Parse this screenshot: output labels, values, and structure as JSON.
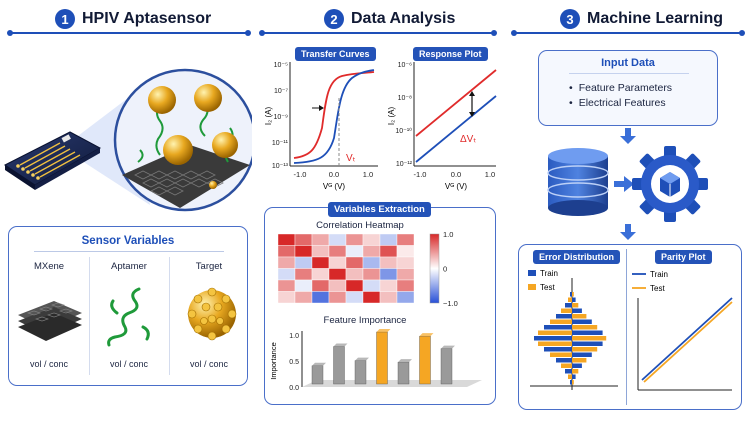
{
  "sections": [
    {
      "num": "1",
      "title": "HPIV Aptasensor"
    },
    {
      "num": "2",
      "title": "Data Analysis"
    },
    {
      "num": "3",
      "title": "Machine Learning"
    }
  ],
  "sensor_vars": {
    "title": "Sensor Variables",
    "items": [
      {
        "name": "MXene",
        "unit": "vol / conc"
      },
      {
        "name": "Aptamer",
        "unit": "vol / conc"
      },
      {
        "name": "Target",
        "unit": "vol / conc"
      }
    ]
  },
  "transfer": {
    "title": "Transfer Curves",
    "ylabel": "I₂ (A)",
    "xlabel": "Vᴳ (V)",
    "marker": "Vₜ",
    "yticks": [
      "10⁻⁵",
      "10⁻⁷",
      "10⁻⁹",
      "10⁻¹¹",
      "10⁻¹³"
    ],
    "xticks": [
      "-1.0",
      "0.0",
      "1.0"
    ]
  },
  "response": {
    "title": "Response Plot",
    "ylabel": "I₂ (A)",
    "xlabel": "Vᴳ (V)",
    "delta": "ΔVₜ",
    "yticks": [
      "10⁻⁶",
      "10⁻⁸",
      "10⁻¹⁰",
      "10⁻¹²"
    ],
    "xticks": [
      "-1.0",
      "0.0",
      "1.0"
    ]
  },
  "variables_extraction": {
    "title": "Variables Extraction",
    "heatmap_title": "Correlation Heatmap",
    "colorbar_ticks": [
      "1.0",
      "0",
      "−1.0"
    ],
    "importance_title": "Feature Importance",
    "importance_ylabel": "Importance",
    "importance_yticks": [
      "1.0",
      "0.5",
      "0.0"
    ]
  },
  "input_data": {
    "title": "Input Data",
    "items": [
      "Feature Parameters",
      "Electrical Features"
    ]
  },
  "error_dist": {
    "title": "Error Distribution",
    "legend": [
      "Train",
      "Test"
    ]
  },
  "parity": {
    "title": "Parity Plot",
    "legend": [
      "Train",
      "Test"
    ]
  },
  "colors": {
    "blue": "#1e4fb8",
    "red": "#e02b2b",
    "orange": "#f5a623",
    "gold": "#e0a020",
    "gray": "#9a9a9a"
  },
  "chart_data": [
    {
      "type": "heatmap",
      "title": "Correlation Heatmap",
      "colorbar": {
        "min": -1.0,
        "max": 1.0
      },
      "values": [
        [
          1.0,
          0.7,
          0.4,
          -0.2,
          0.5,
          0.2,
          -0.3,
          0.6
        ],
        [
          0.7,
          1.0,
          0.3,
          0.6,
          -0.1,
          0.4,
          0.8,
          0.1
        ],
        [
          0.4,
          -0.3,
          1.0,
          0.2,
          0.7,
          -0.4,
          0.3,
          0.2
        ],
        [
          -0.2,
          0.6,
          0.2,
          1.0,
          0.3,
          0.5,
          -0.6,
          0.4
        ],
        [
          0.5,
          -0.1,
          0.7,
          0.3,
          1.0,
          -0.2,
          0.2,
          0.6
        ],
        [
          0.2,
          0.4,
          -0.8,
          0.5,
          -0.2,
          1.0,
          0.3,
          -0.5
        ]
      ]
    },
    {
      "type": "bar",
      "title": "Feature Importance",
      "ylabel": "Importance",
      "ylim": [
        0,
        1.0
      ],
      "values": [
        0.35,
        0.72,
        0.45,
        1.0,
        0.42,
        0.92,
        0.68
      ],
      "colors": [
        "gray",
        "gray",
        "gray",
        "orange",
        "gray",
        "orange",
        "gray"
      ]
    }
  ]
}
